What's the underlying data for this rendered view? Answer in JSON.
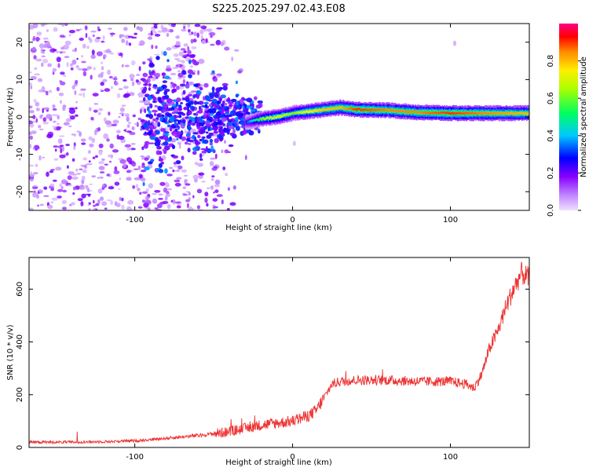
{
  "figure_title": "S225.2025.297.02.43.E08",
  "chart_data": [
    {
      "type": "heatmap",
      "title": "S225.2025.297.02.43.E08",
      "xlabel": "Height of straight line (km)",
      "ylabel": "Frequency (Hz)",
      "xlim": [
        -167,
        150
      ],
      "ylim": [
        -25,
        25
      ],
      "xticks": [
        -100,
        0,
        100
      ],
      "yticks": [
        -20,
        -10,
        0,
        10,
        20
      ],
      "xtick_labels": [
        "-100",
        "0",
        "100"
      ],
      "ytick_labels": [
        "-20",
        "-10",
        "0",
        "10",
        "20"
      ],
      "colorbar": {
        "label": "Normalized spectral amplitude",
        "range": [
          0,
          1
        ],
        "ticks": [
          0,
          0.2,
          0.4,
          0.6,
          0.8
        ],
        "tick_labels": [
          "0.0",
          "0.2",
          "0.4",
          "0.6",
          "0.8"
        ],
        "colormap": "rainbow",
        "colors": [
          "#e6ccff",
          "#8800ff",
          "#0000ff",
          "#00e0ff",
          "#00ff40",
          "#ffff00",
          "#ff8800",
          "#ff0000",
          "#ff0080"
        ]
      },
      "ridge": {
        "description_series": "dominant frequency ridge",
        "x": [
          -30,
          -20,
          -10,
          0,
          10,
          20,
          30,
          40,
          60,
          80,
          100,
          120,
          150
        ],
        "y": [
          -1.5,
          -0.5,
          0.0,
          1.0,
          1.5,
          2.0,
          2.5,
          2.0,
          1.8,
          1.2,
          1.0,
          1.0,
          1.0
        ],
        "amplitude": [
          0.3,
          0.6,
          0.7,
          0.6,
          0.75,
          0.8,
          0.8,
          0.9,
          0.85,
          0.85,
          0.9,
          0.85,
          0.8
        ]
      },
      "grid": false
    },
    {
      "type": "line",
      "xlabel": "Height of straight line (km)",
      "ylabel": "SNR (10 * v/v)",
      "xlim": [
        -167,
        150
      ],
      "ylim": [
        0,
        720
      ],
      "xticks": [
        -100,
        0,
        100
      ],
      "yticks": [
        0,
        200,
        400,
        600
      ],
      "xtick_labels": [
        "-100",
        "0",
        "100"
      ],
      "ytick_labels": [
        "0",
        "200",
        "400",
        "600"
      ],
      "color": "#ee3333",
      "series": [
        {
          "x": [
            -167,
            -140,
            -120,
            -100,
            -80,
            -60,
            -40,
            -20,
            0,
            10,
            15,
            20,
            25,
            30,
            40,
            60,
            80,
            100,
            110,
            115,
            120,
            125,
            130,
            135,
            140,
            145,
            150
          ],
          "values": [
            20,
            20,
            22,
            25,
            35,
            45,
            60,
            85,
            100,
            120,
            140,
            190,
            240,
            250,
            255,
            255,
            250,
            250,
            240,
            225,
            280,
            380,
            440,
            530,
            600,
            660,
            640
          ]
        }
      ],
      "grid": false
    }
  ]
}
